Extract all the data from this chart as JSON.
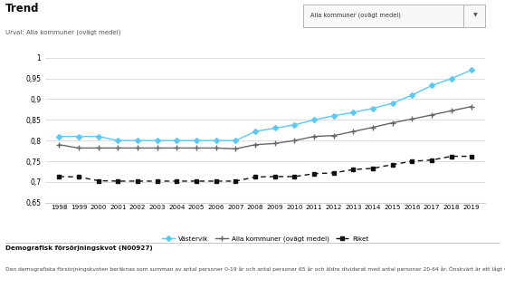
{
  "years": [
    1998,
    1999,
    2000,
    2001,
    2002,
    2003,
    2004,
    2005,
    2006,
    2007,
    2008,
    2009,
    2010,
    2011,
    2012,
    2013,
    2014,
    2015,
    2016,
    2017,
    2018,
    2019
  ],
  "vastervik": [
    0.81,
    0.81,
    0.81,
    0.8,
    0.8,
    0.8,
    0.8,
    0.8,
    0.8,
    0.8,
    0.822,
    0.83,
    0.838,
    0.85,
    0.86,
    0.868,
    0.878,
    0.89,
    0.91,
    0.933,
    0.95,
    0.97
  ],
  "alla_kommuner": [
    0.79,
    0.782,
    0.782,
    0.782,
    0.782,
    0.782,
    0.782,
    0.782,
    0.782,
    0.78,
    0.79,
    0.793,
    0.8,
    0.81,
    0.812,
    0.822,
    0.832,
    0.843,
    0.852,
    0.862,
    0.872,
    0.882
  ],
  "riket": [
    0.713,
    0.712,
    0.703,
    0.702,
    0.702,
    0.702,
    0.702,
    0.702,
    0.702,
    0.702,
    0.712,
    0.713,
    0.713,
    0.72,
    0.722,
    0.73,
    0.733,
    0.742,
    0.75,
    0.753,
    0.762,
    0.762
  ],
  "vastervik_color": "#5bc8f5",
  "alla_kommuner_color": "#666666",
  "riket_color": "#111111",
  "title": "Trend",
  "urval_text": "Urval: Alla kommuner (ovägt medel)",
  "dropdown_text": "Alla kommuner (ovägt medel)",
  "ylim": [
    0.65,
    1.01
  ],
  "yticks": [
    0.65,
    0.7,
    0.75,
    0.8,
    0.85,
    0.9,
    0.95,
    1.0
  ],
  "ytick_labels": [
    "0,65",
    "0,7",
    "0,75",
    "0,8",
    "0,85",
    "0,9",
    "0,95",
    "1"
  ],
  "legend_vastervik": "Västervik",
  "legend_alla": "Alla kommuner (ovägt medel)",
  "legend_riket": "Riket",
  "footer_bold": "Demografisk försörjningskvot (N00927)",
  "footer_text": "Den demografiska försörjningskvoten beräknas som summan av antal personer 0-19 år och antal personer 65 år och äldre dividerat med antal personer 20-64 år. Önskvärt är ett lågt värde. Källa: SCB.",
  "bg_color": "#ffffff",
  "grid_color": "#d0d0d0"
}
